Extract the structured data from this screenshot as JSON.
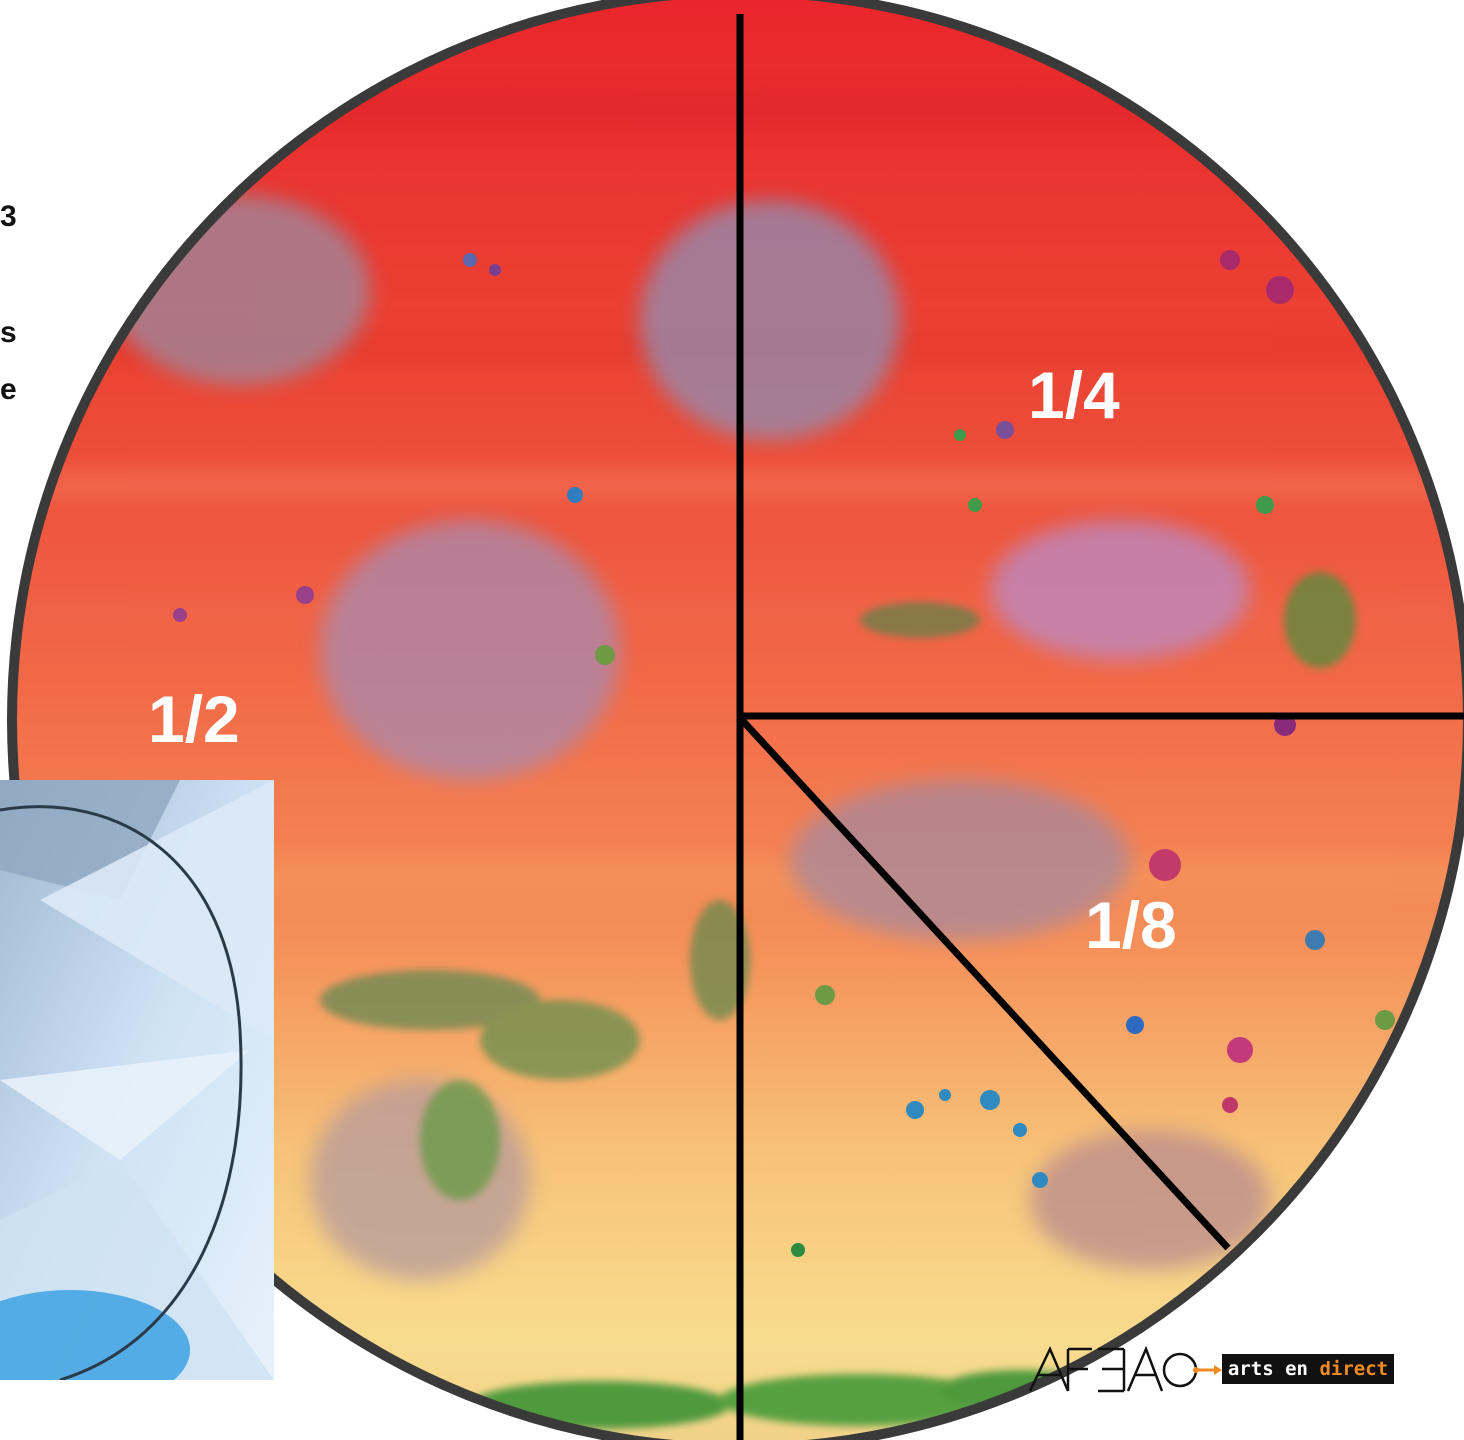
{
  "side_text": {
    "line1": "3",
    "line2": "s",
    "line3": "e"
  },
  "fractions": {
    "half": "1/2",
    "quarter": "1/4",
    "eighth": "1/8"
  },
  "logo": {
    "mark": "AFEAO",
    "tag_part1": "arts en ",
    "tag_part2": "direct"
  },
  "colors": {
    "border": "#3a3a3a",
    "divider": "#000000",
    "label": "#ffffff",
    "tag_bg": "#111111",
    "tag_accent": "#f28a22"
  }
}
